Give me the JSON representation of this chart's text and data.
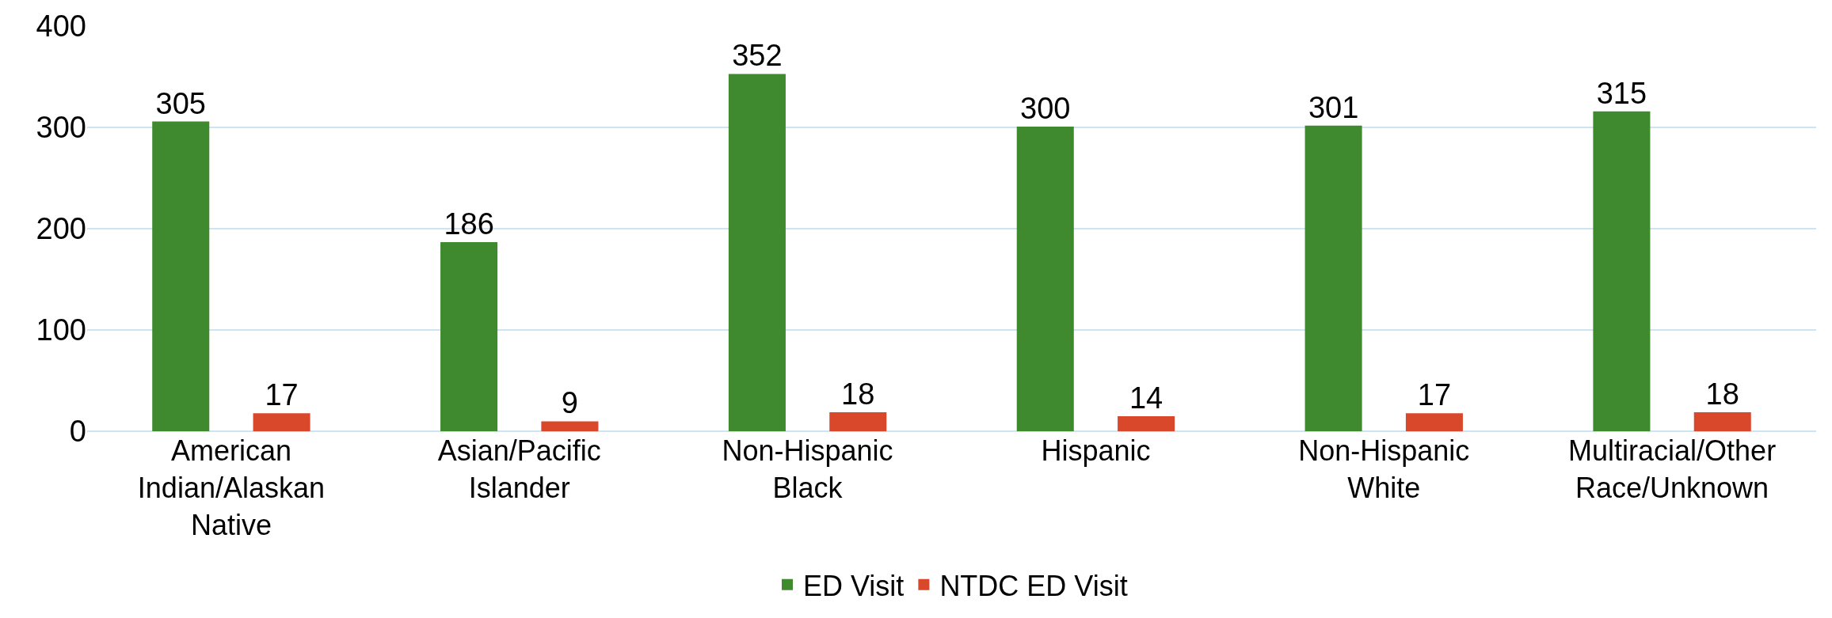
{
  "chart_data": {
    "type": "bar",
    "categories": [
      "American Indian/Alaskan Native",
      "Asian/Pacific Islander",
      "Non-Hispanic Black",
      "Hispanic",
      "Non-Hispanic White",
      "Multiracial/Other Race/Unknown"
    ],
    "series": [
      {
        "name": "ED Visit",
        "color": "#3f8a2f",
        "values": [
          305,
          186,
          352,
          300,
          301,
          315
        ]
      },
      {
        "name": "NTDC ED Visit",
        "color": "#d9482b",
        "values": [
          17,
          9,
          18,
          14,
          17,
          18
        ]
      }
    ],
    "ylim": [
      0,
      400
    ],
    "yticks": [
      0,
      100,
      200,
      300,
      400
    ],
    "grid": "y",
    "legend": "bottom",
    "data_labels": true
  }
}
